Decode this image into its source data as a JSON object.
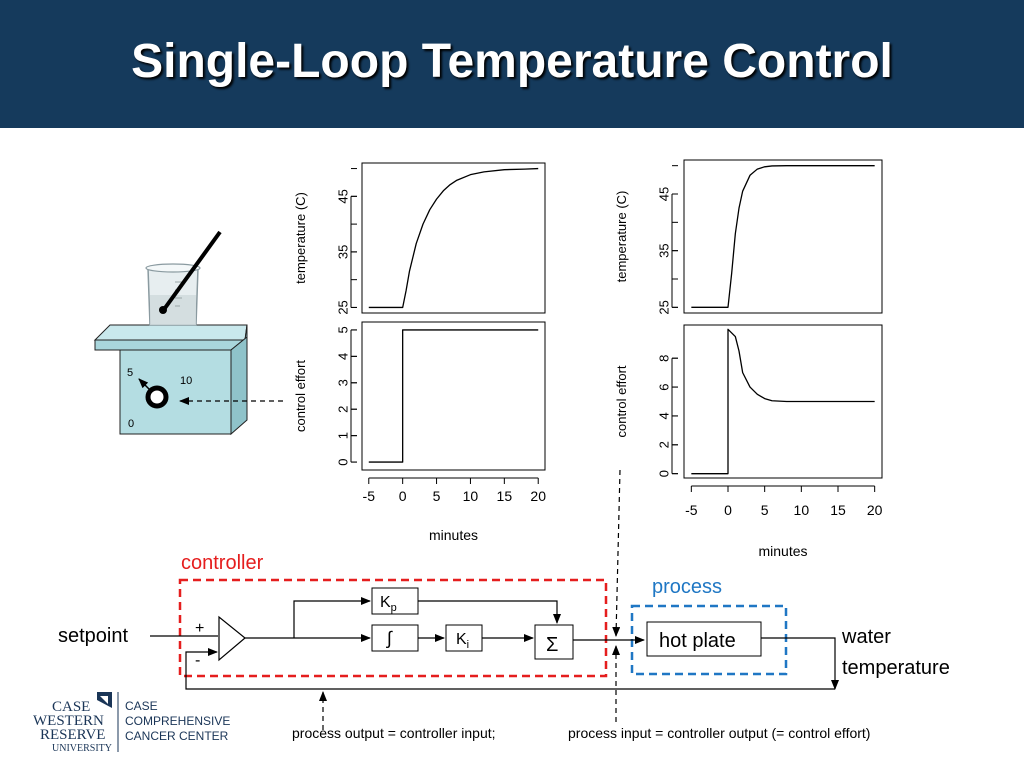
{
  "title": "Single-Loop Temperature Control",
  "hotplate_dial": {
    "label_0": "0",
    "label_5": "5",
    "label_10": "10"
  },
  "diagram": {
    "controller_label": "controller",
    "process_label": "process",
    "setpoint": "setpoint",
    "plus": "+",
    "minus": "-",
    "kp": "K",
    "kp_sub": "p",
    "integral": "∫",
    "ki": "K",
    "ki_sub": "i",
    "sum": "Σ",
    "hot_plate": "hot plate",
    "output_line1": "water",
    "output_line2": "temperature",
    "note_left": "process output = controller input;",
    "note_right": "process input = controller output (= control effort)"
  },
  "logo": {
    "university": [
      "CASE",
      "WESTERN",
      "RESERVE",
      "UNIVERSITY"
    ],
    "center": [
      "CASE",
      "COMPREHENSIVE",
      "CANCER CENTER"
    ]
  },
  "chart_data": [
    {
      "type": "line",
      "panel": "left-top",
      "ylabel": "temperature (C)",
      "xlim": [
        -6,
        21
      ],
      "ylim": [
        24,
        51
      ],
      "yticks": [
        25,
        35,
        45
      ],
      "series": [
        {
          "x": [
            -5,
            0,
            0.5,
            1,
            2,
            3,
            4,
            5,
            6,
            7,
            8,
            10,
            12,
            15,
            18,
            20
          ],
          "y": [
            25,
            25,
            28,
            31.5,
            36.5,
            40,
            42.6,
            44.5,
            46,
            47.1,
            47.9,
            48.9,
            49.4,
            49.8,
            49.9,
            50
          ]
        }
      ]
    },
    {
      "type": "line",
      "panel": "left-bottom",
      "ylabel": "control effort",
      "xlabel": "minutes",
      "xlim": [
        -6,
        21
      ],
      "ylim": [
        -0.3,
        5.3
      ],
      "xticks": [
        -5,
        0,
        5,
        10,
        15,
        20
      ],
      "yticks": [
        0,
        1,
        2,
        3,
        4,
        5
      ],
      "series": [
        {
          "x": [
            -5,
            0,
            0,
            20
          ],
          "y": [
            0,
            0,
            5,
            5
          ]
        }
      ]
    },
    {
      "type": "line",
      "panel": "right-top",
      "ylabel": "temperature (C)",
      "xlim": [
        -6,
        21
      ],
      "ylim": [
        24,
        51
      ],
      "yticks": [
        25,
        35,
        45
      ],
      "series": [
        {
          "x": [
            -5,
            0,
            0.5,
            1,
            1.5,
            2,
            3,
            4,
            5,
            6,
            8,
            10,
            15,
            20
          ],
          "y": [
            25,
            25,
            31,
            38,
            42.5,
            45.5,
            48.3,
            49.4,
            49.8,
            49.95,
            50,
            50,
            50,
            50
          ]
        }
      ]
    },
    {
      "type": "line",
      "panel": "right-bottom",
      "ylabel": "control effort",
      "xlabel": "minutes",
      "xlim": [
        -6,
        21
      ],
      "ylim": [
        -0.3,
        10.3
      ],
      "xticks": [
        -5,
        0,
        5,
        10,
        15,
        20
      ],
      "yticks": [
        0,
        2,
        4,
        6,
        8
      ],
      "series": [
        {
          "x": [
            -5,
            0,
            0,
            1,
            1.5,
            2,
            3,
            4,
            5,
            6,
            8,
            10,
            15,
            20
          ],
          "y": [
            0,
            0,
            10,
            9.5,
            8.5,
            7,
            6,
            5.5,
            5.2,
            5.05,
            5,
            5,
            5,
            5
          ]
        }
      ]
    }
  ]
}
